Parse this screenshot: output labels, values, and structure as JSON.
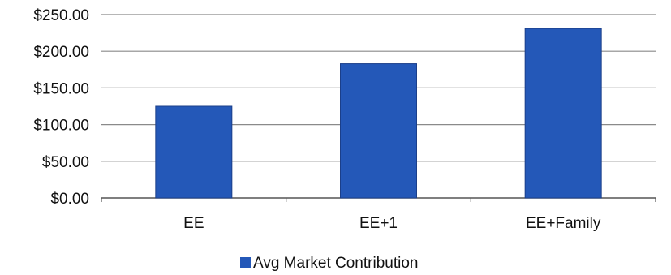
{
  "chart_data": {
    "type": "bar",
    "categories": [
      "EE",
      "EE+1",
      "EE+Family"
    ],
    "series": [
      {
        "name": "Avg Market Contribution",
        "values": [
          125,
          183,
          231
        ]
      }
    ],
    "ylim": [
      0,
      250
    ],
    "yticks": [
      "$0.00",
      "$50.00",
      "$100.00",
      "$150.00",
      "$200.00",
      "$250.00"
    ],
    "grid": true,
    "legend_position": "bottom",
    "colors": {
      "bar": "#2458b8",
      "bar_edge": "#1b3f8a",
      "grid": "#8a8a8a",
      "axis": "#555555"
    }
  }
}
